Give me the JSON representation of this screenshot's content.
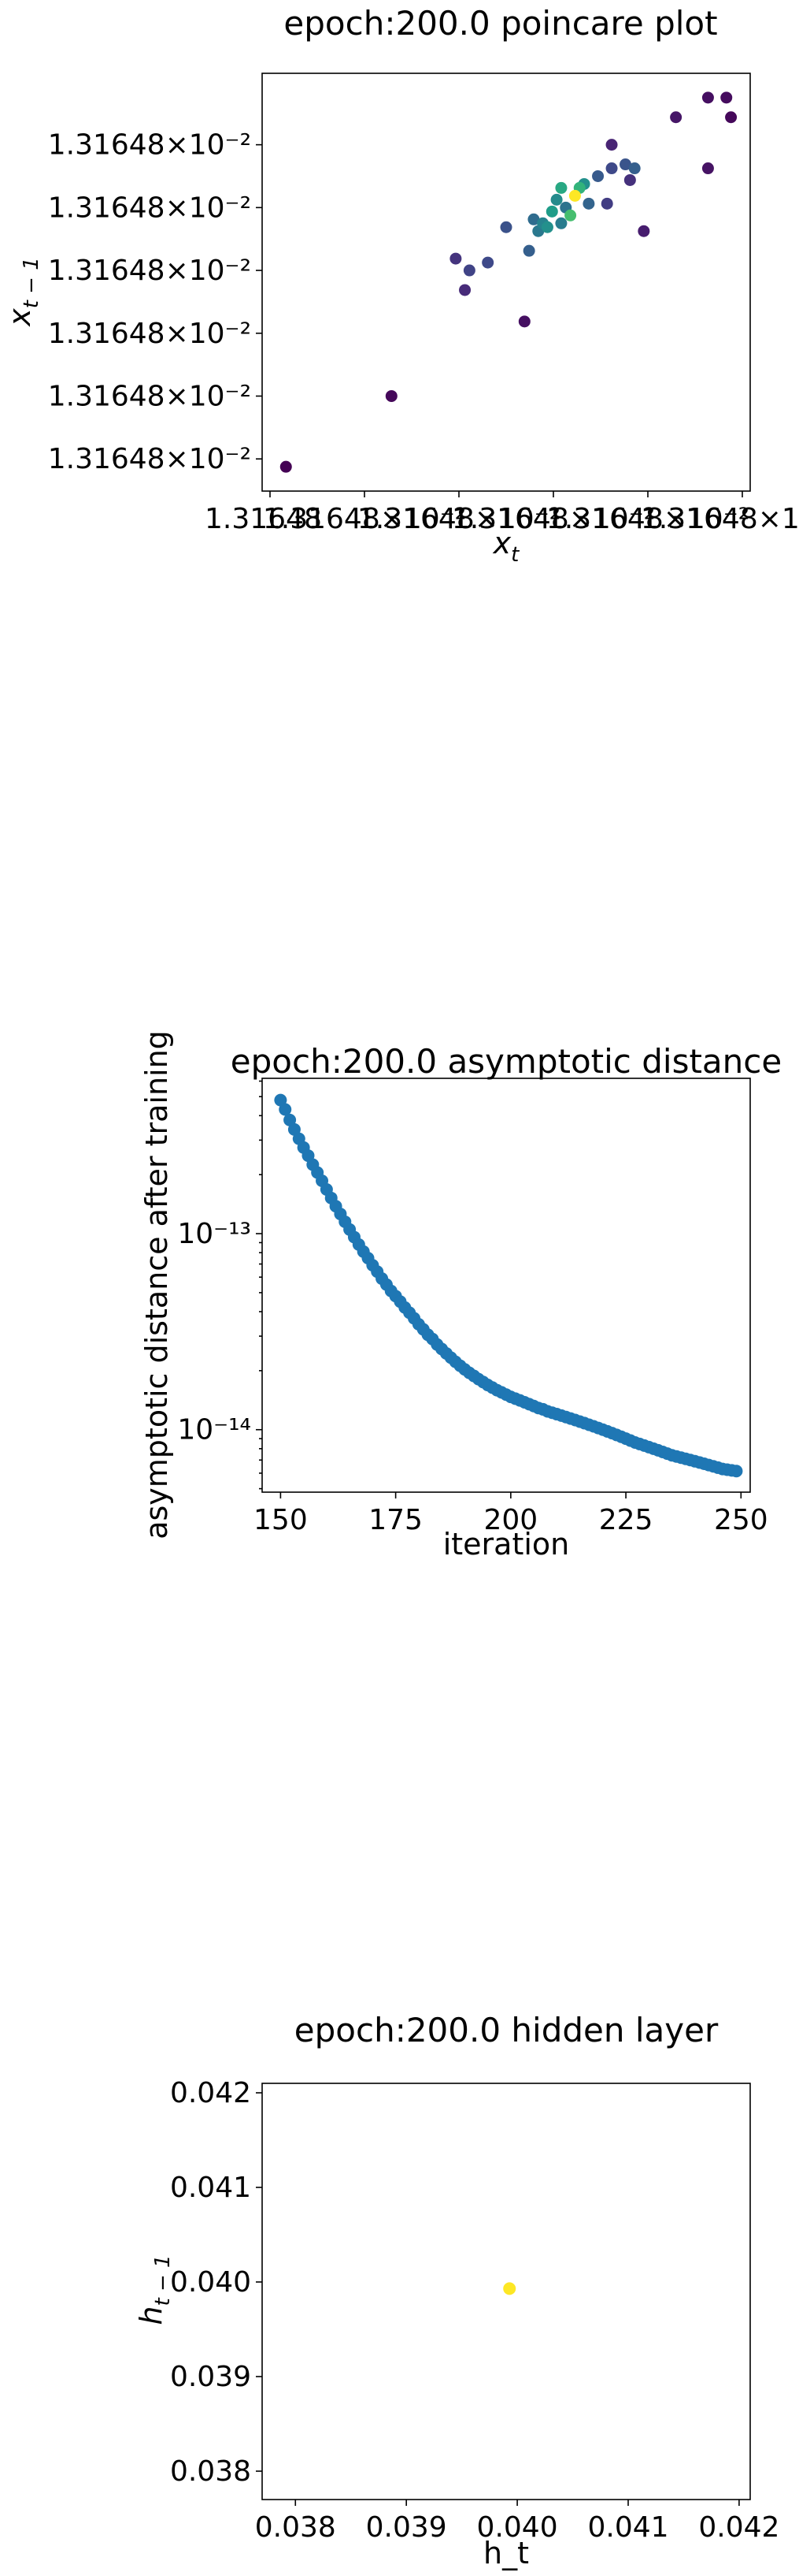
{
  "figure_title_prefix": "epoch:200.0",
  "chart_data": [
    {
      "type": "scatter",
      "title": "epoch:200.0 poincare plot",
      "xlabel": "x_t",
      "ylabel": "x_{t-1}",
      "colormap": "viridis",
      "x_tick_label_text": "1.31648×10⁻²",
      "x_tick_labels_overlapping": [
        "1.31648",
        "1.31648×10⁻²",
        "1.31648×10⁻²",
        "1.31648×10⁻²",
        "1.31648×10⁻²",
        "1.31648×10⁻²"
      ],
      "y_tick_labels": [
        "1.31648×10⁻²",
        "1.31648×10⁻²",
        "1.31648×10⁻²",
        "1.31648×10⁻²",
        "1.31648×10⁻²",
        "1.31648×10⁻²"
      ],
      "points_relative_units": [
        {
          "x": 0.02,
          "y": 0.03,
          "c": 0.0
        },
        {
          "x": 0.25,
          "y": 0.21,
          "c": 0.02
        },
        {
          "x": 0.39,
          "y": 0.56,
          "c": 0.15
        },
        {
          "x": 0.41,
          "y": 0.48,
          "c": 0.12
        },
        {
          "x": 0.42,
          "y": 0.53,
          "c": 0.2
        },
        {
          "x": 0.46,
          "y": 0.55,
          "c": 0.22
        },
        {
          "x": 0.5,
          "y": 0.64,
          "c": 0.25
        },
        {
          "x": 0.54,
          "y": 0.4,
          "c": 0.04
        },
        {
          "x": 0.55,
          "y": 0.58,
          "c": 0.3
        },
        {
          "x": 0.56,
          "y": 0.66,
          "c": 0.35
        },
        {
          "x": 0.57,
          "y": 0.63,
          "c": 0.4
        },
        {
          "x": 0.58,
          "y": 0.65,
          "c": 0.45
        },
        {
          "x": 0.59,
          "y": 0.64,
          "c": 0.5
        },
        {
          "x": 0.6,
          "y": 0.68,
          "c": 0.55
        },
        {
          "x": 0.61,
          "y": 0.71,
          "c": 0.48
        },
        {
          "x": 0.62,
          "y": 0.65,
          "c": 0.42
        },
        {
          "x": 0.62,
          "y": 0.74,
          "c": 0.6
        },
        {
          "x": 0.63,
          "y": 0.69,
          "c": 0.38
        },
        {
          "x": 0.64,
          "y": 0.67,
          "c": 0.7
        },
        {
          "x": 0.65,
          "y": 0.72,
          "c": 1.0
        },
        {
          "x": 0.66,
          "y": 0.74,
          "c": 0.65
        },
        {
          "x": 0.67,
          "y": 0.75,
          "c": 0.5
        },
        {
          "x": 0.68,
          "y": 0.7,
          "c": 0.32
        },
        {
          "x": 0.7,
          "y": 0.77,
          "c": 0.28
        },
        {
          "x": 0.72,
          "y": 0.7,
          "c": 0.18
        },
        {
          "x": 0.73,
          "y": 0.79,
          "c": 0.22
        },
        {
          "x": 0.76,
          "y": 0.8,
          "c": 0.26
        },
        {
          "x": 0.77,
          "y": 0.76,
          "c": 0.14
        },
        {
          "x": 0.73,
          "y": 0.85,
          "c": 0.1
        },
        {
          "x": 0.78,
          "y": 0.79,
          "c": 0.3
        },
        {
          "x": 0.8,
          "y": 0.63,
          "c": 0.08
        },
        {
          "x": 0.87,
          "y": 0.92,
          "c": 0.06
        },
        {
          "x": 0.94,
          "y": 0.79,
          "c": 0.05
        },
        {
          "x": 0.94,
          "y": 0.97,
          "c": 0.04
        },
        {
          "x": 0.98,
          "y": 0.97,
          "c": 0.03
        },
        {
          "x": 0.99,
          "y": 0.92,
          "c": 0.02
        }
      ]
    },
    {
      "type": "scatter",
      "title": "epoch:200.0 asymptotic distance",
      "xlabel": "iteration",
      "ylabel": "asymptotic distance after training",
      "yscale": "log",
      "xlim": [
        146,
        252
      ],
      "ylim": [
        4.8e-15,
        6.2e-13
      ],
      "x_ticks": [
        150,
        175,
        200,
        225,
        250
      ],
      "y_ticks": [
        {
          "value": 1e-13,
          "label": "10⁻¹³"
        },
        {
          "value": 1e-14,
          "label": "10⁻¹⁴"
        }
      ],
      "color": "#1f77b4",
      "x_start": 150,
      "x_end": 249,
      "y_values": [
        4.8e-13,
        4.3e-13,
        3.8e-13,
        3.4e-13,
        3.05e-13,
        2.75e-13,
        2.5e-13,
        2.25e-13,
        2.05e-13,
        1.86e-13,
        1.68e-13,
        1.52e-13,
        1.38e-13,
        1.26e-13,
        1.15e-13,
        1.05e-13,
        9.6e-14,
        8.8e-14,
        8.1e-14,
        7.5e-14,
        6.9e-14,
        6.4e-14,
        5.9e-14,
        5.5e-14,
        5.1e-14,
        4.8e-14,
        4.5e-14,
        4.2e-14,
        3.95e-14,
        3.7e-14,
        3.45e-14,
        3.25e-14,
        3.05e-14,
        2.9e-14,
        2.72e-14,
        2.58e-14,
        2.45e-14,
        2.33e-14,
        2.22e-14,
        2.12e-14,
        2.03e-14,
        1.95e-14,
        1.88e-14,
        1.81e-14,
        1.75e-14,
        1.69e-14,
        1.64e-14,
        1.59e-14,
        1.55e-14,
        1.51e-14,
        1.47e-14,
        1.44e-14,
        1.41e-14,
        1.38e-14,
        1.35e-14,
        1.32e-14,
        1.29e-14,
        1.27e-14,
        1.24e-14,
        1.22e-14,
        1.2e-14,
        1.18e-14,
        1.16e-14,
        1.14e-14,
        1.12e-14,
        1.1e-14,
        1.08e-14,
        1.06e-14,
        1.04e-14,
        1.02e-14,
        1e-14,
        9.8e-15,
        9.6e-15,
        9.4e-15,
        9.2e-15,
        9e-15,
        8.8e-15,
        8.6e-15,
        8.45e-15,
        8.3e-15,
        8.15e-15,
        8e-15,
        7.85e-15,
        7.7e-15,
        7.55e-15,
        7.4e-15,
        7.3e-15,
        7.2e-15,
        7.1e-15,
        7e-15,
        6.9e-15,
        6.8e-15,
        6.7e-15,
        6.6e-15,
        6.5e-15,
        6.4e-15,
        6.3e-15,
        6.25e-15,
        6.2e-15,
        6.15e-15
      ]
    },
    {
      "type": "scatter",
      "title": "epoch:200.0 hidden layer",
      "xlabel": "h_t",
      "ylabel": "h_{t-1}",
      "xlim": [
        0.0377,
        0.0421
      ],
      "ylim": [
        0.0377,
        0.0421
      ],
      "x_ticks": [
        0.038,
        0.039,
        0.04,
        0.041,
        0.042
      ],
      "y_ticks": [
        0.038,
        0.039,
        0.04,
        0.041,
        0.042
      ],
      "tick_format_decimals": 3,
      "points": [
        {
          "x": 0.03993,
          "y": 0.03993
        }
      ],
      "point_color": "#fde725"
    }
  ]
}
